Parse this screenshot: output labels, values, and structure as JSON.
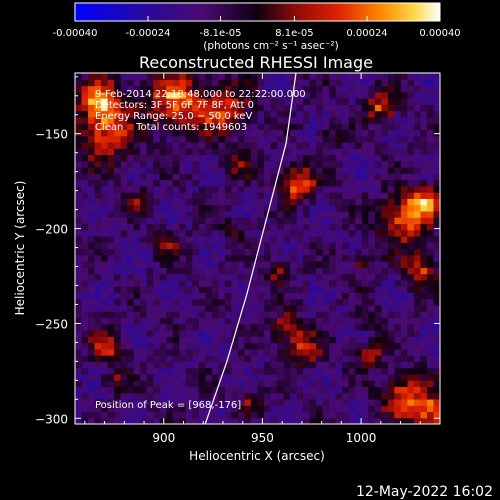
{
  "chart_data": {
    "type": "heatmap",
    "title": "Reconstructed RHESSI Image",
    "xlabel": "Heliocentric X (arcsec)",
    "ylabel": "Heliocentric Y (arcsec)",
    "xlim": [
      855,
      1040
    ],
    "ylim": [
      -303,
      -118
    ],
    "x_ticks": [
      900,
      950,
      1000
    ],
    "y_ticks": [
      -150,
      -200,
      -250,
      -300
    ],
    "x_tick_labels": [
      "900",
      "950",
      "1000"
    ],
    "y_tick_labels": [
      "−150",
      "−200",
      "−250",
      "−300"
    ],
    "colorbar": {
      "range": [
        -0.0004,
        0.0004
      ],
      "tick_values": [
        -0.0004,
        -0.00024,
        -8.1e-05,
        8.1e-05,
        0.00024,
        0.0004
      ],
      "tick_labels": [
        "-0.00040",
        "-0.00024",
        "-8.1e-05",
        "8.1e-05",
        "0.00024",
        "0.00040"
      ],
      "unit_label": "(photons cm⁻² s⁻¹ asec⁻²)"
    },
    "annotations": {
      "time_range": "9-Feb-2014 22:18:48.000 to 22:22:00.000",
      "detectors": "Detectors: 3F 5F 6F 7F 8F, Att 0",
      "energy_range": "Energy Range: 25.0 − 50.0 keV",
      "algorithm": "Clean    Total counts: 1949603",
      "peak_position": "Position of Peak = [968,-176]"
    },
    "limb_curve_points": [
      [
        921,
        -303
      ],
      [
        932,
        -270
      ],
      [
        942,
        -235
      ],
      [
        952,
        -195
      ],
      [
        962,
        -155
      ],
      [
        967,
        -118
      ]
    ],
    "bright_regions": [
      {
        "x": 868,
        "y": -132,
        "r": 8,
        "v": 0.00036
      },
      {
        "x": 870,
        "y": -150,
        "r": 10,
        "v": 0.0003
      },
      {
        "x": 905,
        "y": -132,
        "r": 10,
        "v": 0.00035
      },
      {
        "x": 930,
        "y": -137,
        "r": 9,
        "v": 0.0003
      },
      {
        "x": 968,
        "y": -176,
        "r": 6,
        "v": 0.0004
      },
      {
        "x": 1010,
        "y": -135,
        "r": 6,
        "v": 0.00028
      },
      {
        "x": 1022,
        "y": -195,
        "r": 9,
        "v": 0.00034
      },
      {
        "x": 1032,
        "y": -185,
        "r": 6,
        "v": 0.0003
      },
      {
        "x": 1030,
        "y": -222,
        "r": 6,
        "v": 0.00028
      },
      {
        "x": 1000,
        "y": -218,
        "r": 4,
        "v": 0.00018
      },
      {
        "x": 958,
        "y": -222,
        "r": 4,
        "v": 0.00024
      },
      {
        "x": 902,
        "y": -208,
        "r": 5,
        "v": 0.00018
      },
      {
        "x": 962,
        "y": -253,
        "r": 6,
        "v": 0.00024
      },
      {
        "x": 972,
        "y": -263,
        "r": 6,
        "v": 0.00022
      },
      {
        "x": 1005,
        "y": -265,
        "r": 5,
        "v": 0.0002
      },
      {
        "x": 872,
        "y": -262,
        "r": 6,
        "v": 0.00024
      },
      {
        "x": 875,
        "y": -280,
        "r": 4,
        "v": 0.00018
      },
      {
        "x": 1022,
        "y": -288,
        "r": 8,
        "v": 0.00032
      },
      {
        "x": 1035,
        "y": -297,
        "r": 6,
        "v": 0.00035
      },
      {
        "x": 945,
        "y": -292,
        "r": 4,
        "v": 0.00018
      },
      {
        "x": 935,
        "y": -200,
        "r": 4,
        "v": 0.00014
      },
      {
        "x": 938,
        "y": -165,
        "r": 5,
        "v": 0.00018
      },
      {
        "x": 888,
        "y": -185,
        "r": 4,
        "v": 0.00016
      },
      {
        "x": 985,
        "y": -150,
        "r": 4,
        "v": 0.00014
      },
      {
        "x": 1005,
        "y": -248,
        "r": 4,
        "v": 0.00016
      }
    ],
    "grid": false
  },
  "footer": {
    "date": "12-May-2022 16:02"
  },
  "colors": {
    "background": "#000000",
    "text": "#ffffff",
    "limb": "#ffffff"
  }
}
